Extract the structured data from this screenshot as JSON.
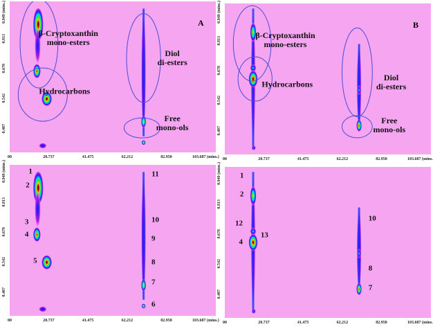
{
  "chart_data": {
    "type": "heatmap",
    "xlabel": "(mins.)",
    "ylabel": "(mins.)",
    "x_ticks": [
      "00",
      "20.737",
      "41.475",
      "62.212",
      "82.950",
      "103.687 (mins.)"
    ],
    "x_tick_values": [
      0,
      20.737,
      41.475,
      62.212,
      82.95,
      103.687
    ],
    "y_ticks": [
      "0.949 (mins.)",
      "0.813",
      "0.678",
      "0.542",
      "0.407"
    ],
    "y_tick_values": [
      0.949,
      0.813,
      0.678,
      0.542,
      0.407
    ],
    "xlim": [
      0,
      109
    ],
    "ylim": [
      0.3,
      0.98
    ],
    "colors": {
      "background": "#f6a6f1",
      "ellipse": "#4b4bd6"
    },
    "panels": [
      {
        "tag": "A",
        "peaks": [
          {
            "x": 15.1,
            "y": 0.876,
            "i": 1,
            "sx": 2.5,
            "sy": 0.07
          },
          {
            "x": 14.4,
            "y": 0.666,
            "i": 0.9,
            "sx": 1.8,
            "sy": 0.03
          },
          {
            "x": 19.6,
            "y": 0.541,
            "i": 1,
            "sx": 2.5,
            "sy": 0.03
          },
          {
            "x": 17.5,
            "y": 0.33,
            "i": 0.35,
            "sx": 2,
            "sy": 0.012
          },
          {
            "x": 70.8,
            "y": 0.438,
            "i": 0.8,
            "sx": 1.2,
            "sy": 0.025
          },
          {
            "x": 70.8,
            "y": 0.344,
            "i": 0.75,
            "sx": 1,
            "sy": 0.01
          },
          {
            "x": 14.8,
            "y": 0.78,
            "i": 0.3,
            "sx": 1.5,
            "sy": 0.08
          }
        ],
        "streaks": [
          {
            "x": 70.8,
            "y0": 0.36,
            "y1": 0.96,
            "i": 0.35
          }
        ],
        "annotations": [
          {
            "text": "β-Cryptoxanthin",
            "text2": "mono-esters",
            "x": 31,
            "y": 0.815,
            "cx": 15.5,
            "cy": 0.79,
            "rx": 10,
            "ry": 0.2
          },
          {
            "text": "Hydrocarbons",
            "text2": "",
            "x": 29,
            "y": 0.575,
            "cx": 17.5,
            "cy": 0.56,
            "rx": 13,
            "ry": 0.12
          },
          {
            "text": "Diol",
            "text2": "di-esters",
            "x": 86,
            "y": 0.725,
            "cx": 70.8,
            "cy": 0.725,
            "rx": 9,
            "ry": 0.2
          },
          {
            "text": "Free",
            "text2": "mono-ols",
            "x": 86,
            "y": 0.43,
            "cx": 70,
            "cy": 0.41,
            "rx": 9.5,
            "ry": 0.045
          }
        ]
      },
      {
        "tag": "B",
        "peaks": [
          {
            "x": 15,
            "y": 0.85,
            "i": 0.75,
            "sx": 1.5,
            "sy": 0.04
          },
          {
            "x": 15,
            "y": 0.64,
            "i": 1,
            "sx": 2.2,
            "sy": 0.035
          },
          {
            "x": 15,
            "y": 0.69,
            "i": 0.45,
            "sx": 1.5,
            "sy": 0.015
          },
          {
            "x": 71,
            "y": 0.43,
            "i": 0.9,
            "sx": 1.3,
            "sy": 0.025
          },
          {
            "x": 71,
            "y": 0.59,
            "i": 0.45,
            "sx": 1,
            "sy": 0.02
          },
          {
            "x": 15.3,
            "y": 0.33,
            "i": 0.4,
            "sx": 1,
            "sy": 0.01
          }
        ],
        "streaks": [
          {
            "x": 15,
            "y0": 0.31,
            "y1": 0.97,
            "i": 0.3
          },
          {
            "x": 71,
            "y0": 0.4,
            "y1": 0.81,
            "i": 0.38
          }
        ],
        "annotations": [
          {
            "text": "β-Cryptoxanthin",
            "text2": "mono-esters",
            "x": 32,
            "y": 0.815,
            "cx": 14.5,
            "cy": 0.8,
            "rx": 10,
            "ry": 0.17
          },
          {
            "text": "Hydrocarbons",
            "text2": "",
            "x": 33,
            "y": 0.615,
            "cx": 16,
            "cy": 0.64,
            "rx": 9,
            "ry": 0.1
          },
          {
            "text": "Diol",
            "text2": "di-esters",
            "x": 88,
            "y": 0.625,
            "cx": 70,
            "cy": 0.67,
            "rx": 8,
            "ry": 0.2
          },
          {
            "text": "Free",
            "text2": "mono-ols",
            "x": 87,
            "y": 0.43,
            "cx": 70,
            "cy": 0.425,
            "rx": 8,
            "ry": 0.05
          }
        ]
      },
      {
        "tag": "",
        "peaks": [
          {
            "x": 15.1,
            "y": 0.876,
            "i": 1,
            "sx": 2.5,
            "sy": 0.07
          },
          {
            "x": 14.4,
            "y": 0.666,
            "i": 0.9,
            "sx": 1.8,
            "sy": 0.03
          },
          {
            "x": 19.6,
            "y": 0.541,
            "i": 1,
            "sx": 2.5,
            "sy": 0.03
          },
          {
            "x": 17.5,
            "y": 0.33,
            "i": 0.35,
            "sx": 2,
            "sy": 0.012
          },
          {
            "x": 70.8,
            "y": 0.438,
            "i": 0.8,
            "sx": 1.2,
            "sy": 0.025
          },
          {
            "x": 70.8,
            "y": 0.344,
            "i": 0.75,
            "sx": 1,
            "sy": 0.01
          },
          {
            "x": 14.8,
            "y": 0.78,
            "i": 0.3,
            "sx": 1.5,
            "sy": 0.08
          }
        ],
        "streaks": [
          {
            "x": 70.8,
            "y0": 0.36,
            "y1": 0.96,
            "i": 0.35
          }
        ],
        "numbers": [
          {
            "n": "1",
            "x": 11,
            "y": 0.95
          },
          {
            "n": "2",
            "x": 9.5,
            "y": 0.885
          },
          {
            "n": "3",
            "x": 9,
            "y": 0.72
          },
          {
            "n": "4",
            "x": 9,
            "y": 0.665
          },
          {
            "n": "5",
            "x": 13.5,
            "y": 0.545
          },
          {
            "n": "6",
            "x": 76,
            "y": 0.35
          },
          {
            "n": "7",
            "x": 76,
            "y": 0.45
          },
          {
            "n": "8",
            "x": 76,
            "y": 0.54
          },
          {
            "n": "9",
            "x": 76,
            "y": 0.645
          },
          {
            "n": "10",
            "x": 77,
            "y": 0.73
          },
          {
            "n": "11",
            "x": 77,
            "y": 0.935
          }
        ]
      },
      {
        "tag": "",
        "peaks": [
          {
            "x": 15,
            "y": 0.85,
            "i": 0.75,
            "sx": 1.5,
            "sy": 0.04
          },
          {
            "x": 15,
            "y": 0.64,
            "i": 1,
            "sx": 2.2,
            "sy": 0.035
          },
          {
            "x": 15,
            "y": 0.69,
            "i": 0.45,
            "sx": 1.5,
            "sy": 0.015
          },
          {
            "x": 71,
            "y": 0.43,
            "i": 0.9,
            "sx": 1.3,
            "sy": 0.025
          },
          {
            "x": 71,
            "y": 0.59,
            "i": 0.45,
            "sx": 1,
            "sy": 0.02
          },
          {
            "x": 15.3,
            "y": 0.33,
            "i": 0.4,
            "sx": 1,
            "sy": 0.01
          }
        ],
        "streaks": [
          {
            "x": 15,
            "y0": 0.31,
            "y1": 0.97,
            "i": 0.3
          },
          {
            "x": 71,
            "y0": 0.4,
            "y1": 0.81,
            "i": 0.38
          }
        ],
        "numbers": [
          {
            "n": "1",
            "x": 9,
            "y": 0.94
          },
          {
            "n": "2",
            "x": 9,
            "y": 0.855
          },
          {
            "n": "12",
            "x": 7.5,
            "y": 0.725
          },
          {
            "n": "13",
            "x": 21,
            "y": 0.67
          },
          {
            "n": "4",
            "x": 8.5,
            "y": 0.64
          },
          {
            "n": "10",
            "x": 78,
            "y": 0.745
          },
          {
            "n": "8",
            "x": 77,
            "y": 0.52
          },
          {
            "n": "7",
            "x": 77,
            "y": 0.435
          }
        ]
      }
    ]
  }
}
